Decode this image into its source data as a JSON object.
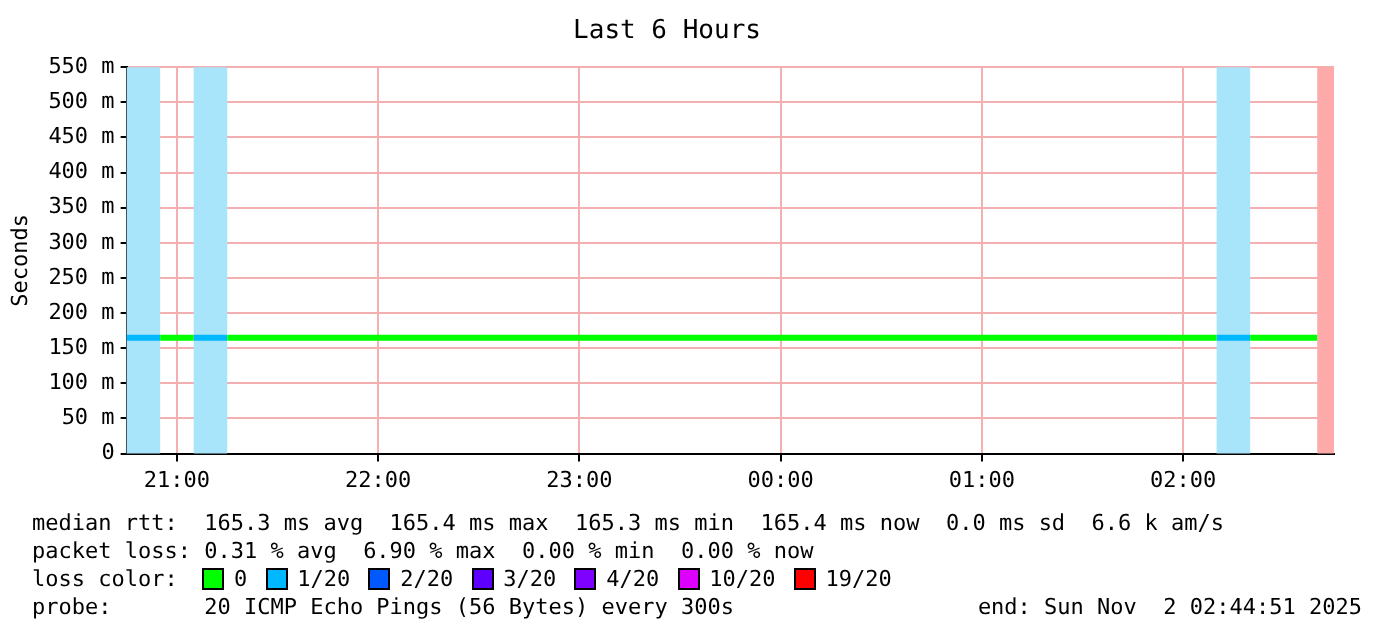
{
  "chart_data": {
    "type": "line",
    "title": "Last 6 Hours",
    "ylabel": "Seconds",
    "xlim": [
      "2025-11-01T20:45",
      "2025-11-02T02:45"
    ],
    "xticks": [
      {
        "value": "2025-11-01T21:00",
        "label": "21:00"
      },
      {
        "value": "2025-11-01T22:00",
        "label": "22:00"
      },
      {
        "value": "2025-11-01T23:00",
        "label": "23:00"
      },
      {
        "value": "2025-11-02T00:00",
        "label": "00:00"
      },
      {
        "value": "2025-11-02T01:00",
        "label": "01:00"
      },
      {
        "value": "2025-11-02T02:00",
        "label": "02:00"
      }
    ],
    "ylim": [
      0,
      550
    ],
    "yticks": [
      {
        "value": 0,
        "label": "0"
      },
      {
        "value": 50,
        "label": "50 m"
      },
      {
        "value": 100,
        "label": "100 m"
      },
      {
        "value": 150,
        "label": "150 m"
      },
      {
        "value": 200,
        "label": "200 m"
      },
      {
        "value": 250,
        "label": "250 m"
      },
      {
        "value": 300,
        "label": "300 m"
      },
      {
        "value": 350,
        "label": "350 m"
      },
      {
        "value": 400,
        "label": "400 m"
      },
      {
        "value": 450,
        "label": "450 m"
      },
      {
        "value": 500,
        "label": "500 m"
      },
      {
        "value": 550,
        "label": "550 m"
      }
    ],
    "grid": true,
    "legend": "bottom",
    "legend_title": "loss color:",
    "marker": "none",
    "line_style": "solid",
    "series": [
      {
        "name": "0",
        "color": "#00ff00",
        "x": [
          "2025-11-01T20:55",
          "2025-11-01T21:05",
          "2025-11-01T21:10",
          "2025-11-01T21:15",
          "2025-11-02T02:10",
          "2025-11-02T02:15",
          "2025-11-02T02:20",
          "2025-11-02T02:40"
        ],
        "values": [
          165,
          165,
          null,
          165,
          165,
          null,
          165,
          165
        ]
      },
      {
        "name": "1/20",
        "color": "#00b8ff",
        "x": [
          "2025-11-01T20:45",
          "2025-11-01T20:55",
          "2025-11-01T21:00",
          "2025-11-01T21:05",
          "2025-11-01T21:15",
          "2025-11-02T01:00",
          "2025-11-02T02:10",
          "2025-11-02T02:20"
        ],
        "values": [
          165,
          165,
          null,
          165,
          165,
          null,
          165,
          165
        ]
      },
      {
        "name": "2/20",
        "color": "#0059ff"
      },
      {
        "name": "3/20",
        "color": "#5e00ff"
      },
      {
        "name": "4/20",
        "color": "#7e00ff"
      },
      {
        "name": "10/20",
        "color": "#dd00ff"
      },
      {
        "name": "19/20",
        "color": "#ff0000"
      }
    ],
    "bands": [
      {
        "axis": "x",
        "from": "2025-11-01T20:45",
        "to": "2025-11-01T20:55",
        "color": "#a8e4fa"
      },
      {
        "axis": "x",
        "from": "2025-11-01T21:05",
        "to": "2025-11-01T21:15",
        "color": "#a8e4fa"
      },
      {
        "axis": "x",
        "from": "2025-11-02T02:10",
        "to": "2025-11-02T02:20",
        "color": "#a8e4fa"
      },
      {
        "axis": "x",
        "from": "2025-11-02T02:40",
        "to": "2025-11-02T02:45",
        "color": "#ffaaaa"
      }
    ],
    "annotations": [
      "median rtt:  165.3 ms avg  165.4 ms max  165.3 ms min  165.4 ms now  0.0 ms sd  6.6 k am/s",
      "packet loss: 0.31 % avg  6.90 % max  0.00 % min  0.00 % now",
      "probe:       20 ICMP Echo Pings (56 Bytes) every 300s",
      "end: Sun Nov  2 02:44:51 2025"
    ]
  }
}
